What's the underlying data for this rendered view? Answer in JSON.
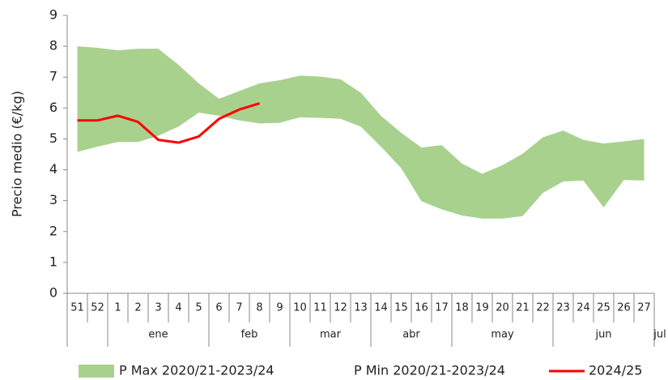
{
  "chart_data": {
    "type": "band_line",
    "y_label": "Precio medio (€/kg)",
    "categories": [
      "51",
      "52",
      "1",
      "2",
      "3",
      "4",
      "5",
      "6",
      "7",
      "8",
      "9",
      "10",
      "11",
      "12",
      "13",
      "14",
      "15",
      "16",
      "17",
      "18",
      "19",
      "20",
      "21",
      "22",
      "23",
      "24",
      "25",
      "26",
      "27"
    ],
    "month_of_week": [
      null,
      null,
      "ene",
      "ene",
      "ene",
      "ene",
      "ene",
      "feb",
      "feb",
      "feb",
      "feb",
      "mar",
      "mar",
      "mar",
      "mar",
      "abr",
      "abr",
      "abr",
      "abr",
      "may",
      "may",
      "may",
      "may",
      "may",
      "jun",
      "jun",
      "jun",
      "jun",
      "jun"
    ],
    "next_month": "jul",
    "ylim": [
      0,
      9
    ],
    "yticks": [
      0,
      1,
      2,
      3,
      4,
      5,
      6,
      7,
      8,
      9
    ],
    "series": [
      {
        "name": "P Max 2020/21-2023/24",
        "color": "#a9d18e",
        "role": "band_top",
        "values": [
          8.0,
          7.95,
          7.87,
          7.92,
          7.92,
          7.4,
          6.8,
          6.3,
          6.55,
          6.8,
          6.9,
          7.05,
          7.02,
          6.93,
          6.5,
          5.75,
          5.2,
          4.72,
          4.8,
          4.2,
          3.87,
          4.15,
          4.52,
          5.05,
          5.27,
          4.97,
          4.85,
          4.92,
          5.0
        ]
      },
      {
        "name": "P Min 2020/21-2023/24",
        "color": "#ffffff",
        "role": "band_bottom",
        "values": [
          4.58,
          4.75,
          4.9,
          4.9,
          5.1,
          5.4,
          5.85,
          5.75,
          5.6,
          5.5,
          5.52,
          5.7,
          5.68,
          5.65,
          5.4,
          4.75,
          4.05,
          2.98,
          2.72,
          2.52,
          2.42,
          2.42,
          2.5,
          3.25,
          3.62,
          3.65,
          2.78,
          3.67,
          3.65
        ]
      },
      {
        "name": "2024/25",
        "color": "#ff0000",
        "role": "line",
        "values": [
          5.6,
          5.6,
          5.75,
          5.55,
          4.97,
          4.88,
          5.08,
          5.65,
          5.95,
          6.15,
          null,
          null,
          null,
          null,
          null,
          null,
          null,
          null,
          null,
          null,
          null,
          null,
          null,
          null,
          null,
          null,
          null,
          null,
          null
        ]
      }
    ]
  }
}
